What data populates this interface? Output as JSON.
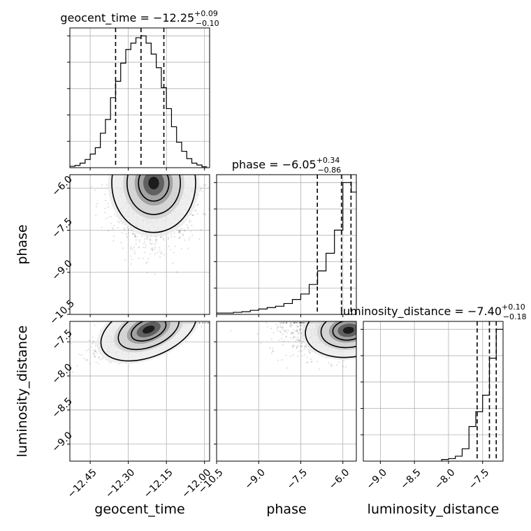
{
  "chart_data": {
    "type": "corner",
    "parameters": [
      "geocent_time",
      "phase",
      "luminosity_distance"
    ],
    "titles": [
      {
        "prefix": "geocent_time = −12.25",
        "sup": "+0.09",
        "sub": "−0.10"
      },
      {
        "prefix": "phase = −6.05",
        "sup": "+0.34",
        "sub": "−0.86"
      },
      {
        "prefix": "luminosity_distance = −7.40",
        "sup": "+0.10",
        "sub": "−0.18"
      }
    ],
    "axes": {
      "geocent_time": {
        "range": [
          -12.53,
          -11.98
        ],
        "ticks": [
          -12.45,
          -12.3,
          -12.15,
          -12.0
        ],
        "tick_labels": [
          "−12.45",
          "−12.30",
          "−12.15",
          "−12.00"
        ]
      },
      "phase": {
        "range": [
          -10.5,
          -5.52
        ],
        "ticks": [
          -10.5,
          -9.0,
          -7.5,
          -6.0
        ],
        "tick_labels": [
          "−10.5",
          "−9.0",
          "−7.5",
          "−6.0"
        ]
      },
      "luminosity_distance": {
        "range": [
          -9.25,
          -7.2
        ],
        "ticks": [
          -9.0,
          -8.5,
          -8.0,
          -7.5
        ],
        "tick_labels": [
          "−9.0",
          "−8.5",
          "−8.0",
          "−7.5"
        ]
      }
    },
    "quantiles": {
      "geocent_time": [
        -12.35,
        -12.25,
        -12.16
      ],
      "phase": [
        -6.91,
        -6.05,
        -5.71
      ],
      "luminosity_distance": [
        -7.58,
        -7.4,
        -7.3
      ]
    },
    "hist_geocent_time": {
      "edges": [
        -12.53,
        -12.51,
        -12.49,
        -12.47,
        -12.45,
        -12.43,
        -12.41,
        -12.39,
        -12.37,
        -12.35,
        -12.33,
        -12.31,
        -12.29,
        -12.27,
        -12.25,
        -12.23,
        -12.21,
        -12.19,
        -12.17,
        -12.15,
        -12.13,
        -12.11,
        -12.09,
        -12.07,
        -12.05,
        -12.03,
        -12.01,
        -11.99
      ],
      "counts": [
        1.5,
        2.5,
        5,
        9,
        15,
        22,
        38,
        53,
        77,
        95,
        115,
        130,
        137,
        143,
        145,
        137,
        125,
        110,
        88,
        65,
        45,
        28,
        18,
        10,
        5,
        3,
        1
      ]
    },
    "hist_phase": {
      "edges": [
        -10.5,
        -10.2,
        -9.9,
        -9.6,
        -9.3,
        -9.0,
        -8.7,
        -8.4,
        -8.1,
        -7.8,
        -7.5,
        -7.2,
        -6.9,
        -6.6,
        -6.3,
        -6.0,
        -5.7,
        -5.52
      ],
      "counts": [
        0.01,
        0.01,
        0.015,
        0.02,
        0.03,
        0.04,
        0.05,
        0.06,
        0.08,
        0.11,
        0.15,
        0.22,
        0.32,
        0.45,
        0.62,
        0.97,
        0.9
      ]
    },
    "hist_luminosity_distance": {
      "edges": [
        -8.1,
        -8.0,
        -7.9,
        -7.8,
        -7.7,
        -7.6,
        -7.5,
        -7.4,
        -7.3,
        -7.2
      ],
      "counts": [
        0.02,
        0.03,
        0.06,
        0.15,
        0.42,
        0.6,
        0.8,
        1.25,
        1.6
      ]
    },
    "density_peaks": {
      "phase_vs_geocent_time": {
        "center": [
          -12.2,
          -5.82
        ],
        "sigma": [
          0.075,
          0.8
        ]
      },
      "luminosity_distance_vs_geocent_time": {
        "center": [
          -12.22,
          -7.32
        ],
        "sigma": [
          0.09,
          0.18
        ]
      },
      "luminosity_distance_vs_phase": {
        "center": [
          -5.8,
          -7.33
        ],
        "sigma": [
          0.7,
          0.18
        ]
      }
    },
    "grid": true
  }
}
